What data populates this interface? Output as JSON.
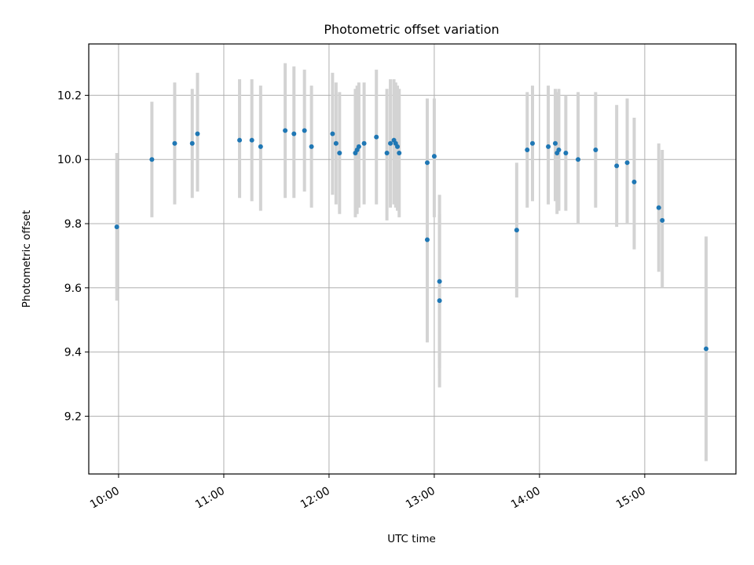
{
  "chart_data": {
    "type": "scatter",
    "title": "Photometric offset variation",
    "xlabel": "UTC time",
    "ylabel": "Photometric offset",
    "x_tick_labels": [
      "10:00",
      "11:00",
      "12:00",
      "13:00",
      "14:00",
      "15:00"
    ],
    "y_tick_labels": [
      "9.2",
      "9.4",
      "9.6",
      "9.8",
      "10.0",
      "10.2"
    ],
    "xlim": [
      "09:43",
      "15:52"
    ],
    "ylim": [
      9.02,
      10.36
    ],
    "grid": true,
    "point_color": "#1f77b4",
    "errorbar_color": "#d3d3d3",
    "points": [
      {
        "x": "09:59",
        "y": 9.79,
        "ylow": 9.56,
        "yhigh": 10.02
      },
      {
        "x": "10:19",
        "y": 10.0,
        "ylow": 9.82,
        "yhigh": 10.18
      },
      {
        "x": "10:32",
        "y": 10.05,
        "ylow": 9.86,
        "yhigh": 10.24
      },
      {
        "x": "10:42",
        "y": 10.05,
        "ylow": 9.88,
        "yhigh": 10.22
      },
      {
        "x": "10:45",
        "y": 10.08,
        "ylow": 9.9,
        "yhigh": 10.27
      },
      {
        "x": "11:09",
        "y": 10.06,
        "ylow": 9.88,
        "yhigh": 10.25
      },
      {
        "x": "11:16",
        "y": 10.06,
        "ylow": 9.87,
        "yhigh": 10.25
      },
      {
        "x": "11:21",
        "y": 10.04,
        "ylow": 9.84,
        "yhigh": 10.23
      },
      {
        "x": "11:35",
        "y": 10.09,
        "ylow": 9.88,
        "yhigh": 10.3
      },
      {
        "x": "11:40",
        "y": 10.08,
        "ylow": 9.88,
        "yhigh": 10.29
      },
      {
        "x": "11:46",
        "y": 10.09,
        "ylow": 9.9,
        "yhigh": 10.28
      },
      {
        "x": "11:50",
        "y": 10.04,
        "ylow": 9.85,
        "yhigh": 10.23
      },
      {
        "x": "12:02",
        "y": 10.08,
        "ylow": 9.89,
        "yhigh": 10.27
      },
      {
        "x": "12:04",
        "y": 10.05,
        "ylow": 9.86,
        "yhigh": 10.24
      },
      {
        "x": "12:06",
        "y": 10.02,
        "ylow": 9.83,
        "yhigh": 10.21
      },
      {
        "x": "12:15",
        "y": 10.02,
        "ylow": 9.82,
        "yhigh": 10.22
      },
      {
        "x": "12:16",
        "y": 10.03,
        "ylow": 9.83,
        "yhigh": 10.23
      },
      {
        "x": "12:17",
        "y": 10.04,
        "ylow": 9.85,
        "yhigh": 10.24
      },
      {
        "x": "12:20",
        "y": 10.05,
        "ylow": 9.86,
        "yhigh": 10.24
      },
      {
        "x": "12:27",
        "y": 10.07,
        "ylow": 9.86,
        "yhigh": 10.28
      },
      {
        "x": "12:33",
        "y": 10.02,
        "ylow": 9.81,
        "yhigh": 10.22
      },
      {
        "x": "12:35",
        "y": 10.05,
        "ylow": 9.85,
        "yhigh": 10.25
      },
      {
        "x": "12:37",
        "y": 10.06,
        "ylow": 9.86,
        "yhigh": 10.25
      },
      {
        "x": "12:38",
        "y": 10.05,
        "ylow": 9.85,
        "yhigh": 10.24
      },
      {
        "x": "12:39",
        "y": 10.04,
        "ylow": 9.84,
        "yhigh": 10.23
      },
      {
        "x": "12:40",
        "y": 10.02,
        "ylow": 9.82,
        "yhigh": 10.22
      },
      {
        "x": "12:56",
        "y": 9.99,
        "ylow": 9.79,
        "yhigh": 10.19
      },
      {
        "x": "12:56",
        "y": 9.75,
        "ylow": 9.43,
        "yhigh": 10.07
      },
      {
        "x": "13:00",
        "y": 10.01,
        "ylow": 9.82,
        "yhigh": 10.19
      },
      {
        "x": "13:03",
        "y": 9.62,
        "ylow": 9.35,
        "yhigh": 9.89
      },
      {
        "x": "13:03",
        "y": 9.56,
        "ylow": 9.29,
        "yhigh": 9.83
      },
      {
        "x": "13:47",
        "y": 9.78,
        "ylow": 9.57,
        "yhigh": 9.99
      },
      {
        "x": "13:53",
        "y": 10.03,
        "ylow": 9.85,
        "yhigh": 10.21
      },
      {
        "x": "13:56",
        "y": 10.05,
        "ylow": 9.87,
        "yhigh": 10.23
      },
      {
        "x": "14:05",
        "y": 10.04,
        "ylow": 9.86,
        "yhigh": 10.23
      },
      {
        "x": "14:09",
        "y": 10.05,
        "ylow": 9.87,
        "yhigh": 10.22
      },
      {
        "x": "14:10",
        "y": 10.02,
        "ylow": 9.83,
        "yhigh": 10.21
      },
      {
        "x": "14:11",
        "y": 10.03,
        "ylow": 9.84,
        "yhigh": 10.22
      },
      {
        "x": "14:15",
        "y": 10.02,
        "ylow": 9.84,
        "yhigh": 10.2
      },
      {
        "x": "14:22",
        "y": 10.0,
        "ylow": 9.8,
        "yhigh": 10.21
      },
      {
        "x": "14:32",
        "y": 10.03,
        "ylow": 9.85,
        "yhigh": 10.21
      },
      {
        "x": "14:44",
        "y": 9.98,
        "ylow": 9.79,
        "yhigh": 10.17
      },
      {
        "x": "14:50",
        "y": 9.99,
        "ylow": 9.8,
        "yhigh": 10.19
      },
      {
        "x": "14:54",
        "y": 9.93,
        "ylow": 9.72,
        "yhigh": 10.13
      },
      {
        "x": "15:08",
        "y": 9.85,
        "ylow": 9.65,
        "yhigh": 10.05
      },
      {
        "x": "15:10",
        "y": 9.81,
        "ylow": 9.6,
        "yhigh": 10.03
      },
      {
        "x": "15:35",
        "y": 9.41,
        "ylow": 9.06,
        "yhigh": 9.76
      }
    ]
  }
}
